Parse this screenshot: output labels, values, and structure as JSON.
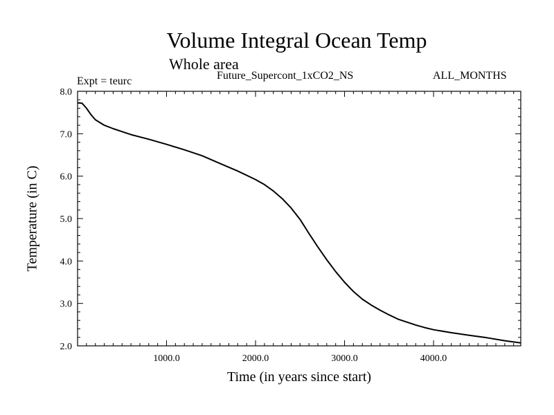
{
  "chart_data": {
    "type": "line",
    "title": "Volume Integral Ocean Temp",
    "subtitle": "Whole area",
    "annotations": {
      "experiment": "Expt = teurc",
      "run": "Future_Supercont_1xCO2_NS",
      "period": "ALL_MONTHS"
    },
    "xlabel": "Time (in years since start)",
    "ylabel": "Temperature (in C)",
    "xlim": [
      0,
      4980
    ],
    "ylim": [
      2.0,
      8.0
    ],
    "x_ticks": [
      1000,
      2000,
      3000,
      4000
    ],
    "x_tick_labels": [
      "1000.0",
      "2000.0",
      "3000.0",
      "4000.0"
    ],
    "y_ticks": [
      2,
      3,
      4,
      5,
      6,
      7,
      8
    ],
    "y_tick_labels": [
      "2.0",
      "3.0",
      "4.0",
      "5.0",
      "6.0",
      "7.0",
      "8.0"
    ],
    "grid": false,
    "series": [
      {
        "color": "#000000",
        "x": [
          0,
          50,
          100,
          150,
          200,
          300,
          400,
          500,
          600,
          800,
          1000,
          1200,
          1400,
          1600,
          1800,
          2000,
          2100,
          2200,
          2300,
          2400,
          2500,
          2600,
          2700,
          2800,
          2900,
          3000,
          3100,
          3200,
          3300,
          3400,
          3500,
          3600,
          3700,
          3800,
          3900,
          4000,
          4200,
          4400,
          4600,
          4800,
          4980
        ],
        "y": [
          7.73,
          7.72,
          7.6,
          7.45,
          7.33,
          7.2,
          7.12,
          7.05,
          6.98,
          6.87,
          6.75,
          6.62,
          6.48,
          6.3,
          6.12,
          5.92,
          5.8,
          5.65,
          5.47,
          5.25,
          4.98,
          4.65,
          4.33,
          4.03,
          3.75,
          3.5,
          3.28,
          3.1,
          2.96,
          2.84,
          2.73,
          2.63,
          2.56,
          2.49,
          2.43,
          2.38,
          2.31,
          2.25,
          2.19,
          2.12,
          2.07
        ]
      }
    ]
  }
}
